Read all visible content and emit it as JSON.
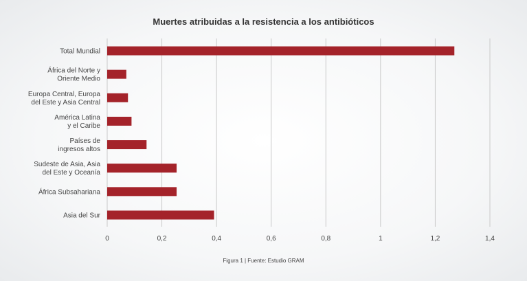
{
  "chart_data": {
    "type": "bar",
    "orientation": "horizontal",
    "title": "Muertes atribuidas a la resistencia a los antibióticos",
    "categories": [
      [
        "Total Mundial"
      ],
      [
        "África del Norte y",
        "Oriente Medio"
      ],
      [
        "Europa Central, Europa",
        "del Este y Asia Central"
      ],
      [
        "América Latina",
        "y el Caribe"
      ],
      [
        "Países de",
        "ingresos altos"
      ],
      [
        "Sudeste de Asia, Asia",
        "del Este y Oceanía"
      ],
      [
        "África Subsahariana"
      ],
      [
        "Asia del Sur"
      ]
    ],
    "values": [
      1.27,
      0.07,
      0.076,
      0.089,
      0.144,
      0.254,
      0.254,
      0.391
    ],
    "xlim": [
      0,
      1.4
    ],
    "xticks": [
      "0",
      "0,2",
      "0,4",
      "0,6",
      "0,8",
      "1",
      "1,2",
      "1,4"
    ],
    "grid": true,
    "bar_color": "#a4232a"
  },
  "caption": "Figura 1  |  Fuente: Estudio GRAM"
}
